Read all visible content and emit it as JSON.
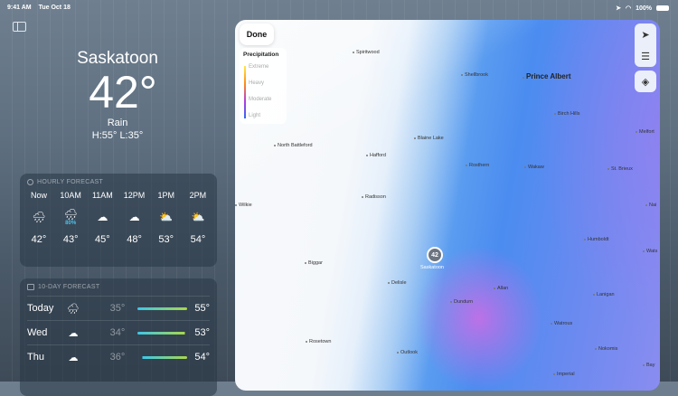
{
  "status": {
    "time": "9:41 AM",
    "date": "Tue Oct 18",
    "battery": "100%"
  },
  "current": {
    "city": "Saskatoon",
    "temp": "42°",
    "condition": "Rain",
    "hilo": "H:55° L:35°"
  },
  "hourly": {
    "title": "HOURLY FORECAST",
    "items": [
      {
        "time": "Now",
        "icon": "rain-cloud-icon",
        "glyph": "🌧",
        "temp": "42°"
      },
      {
        "time": "10AM",
        "icon": "rain-cloud-icon",
        "glyph": "🌧",
        "pct": "80%",
        "temp": "43°"
      },
      {
        "time": "11AM",
        "icon": "cloud-icon",
        "glyph": "☁",
        "temp": "45°"
      },
      {
        "time": "12PM",
        "icon": "cloud-icon",
        "glyph": "☁",
        "temp": "48°"
      },
      {
        "time": "1PM",
        "icon": "partly-sunny-icon",
        "glyph": "⛅",
        "temp": "53°"
      },
      {
        "time": "2PM",
        "icon": "partly-sunny-icon",
        "glyph": "⛅",
        "temp": "54°"
      }
    ]
  },
  "daily": {
    "title": "10-DAY FORECAST",
    "items": [
      {
        "day": "Today",
        "icon": "rain-cloud-icon",
        "glyph": "🌧",
        "lo": "35°",
        "hi": "55°"
      },
      {
        "day": "Wed",
        "icon": "cloud-icon",
        "glyph": "☁",
        "lo": "34°",
        "hi": "53°"
      },
      {
        "day": "Thu",
        "icon": "cloud-icon",
        "glyph": "☁",
        "lo": "36°",
        "hi": "54°"
      }
    ]
  },
  "map": {
    "done": "Done",
    "legend": {
      "title": "Precipitation",
      "levels": [
        "Extreme",
        "Heavy",
        "Moderate",
        "Light"
      ]
    },
    "marker_temp": "42",
    "marker_label": "Saskatoon",
    "towns": [
      "Spiritwood",
      "Shellbrook",
      "Prince Albert",
      "Birch Hills",
      "Melfort",
      "North Battleford",
      "Hafford",
      "Blaine Lake",
      "Rosthern",
      "Wakaw",
      "St. Brieux",
      "Radisson",
      "Wilkie",
      "Nai",
      "Humboldt",
      "Wats",
      "Biggar",
      "Delisle",
      "Dundurn",
      "Allan",
      "Lanigan",
      "Watrous",
      "Rosetown",
      "Outlook",
      "Nokomis",
      "Imperial",
      "Bay"
    ]
  },
  "colors": {
    "rain_pct": "#4ec0e8",
    "bar_start": "#3cc8e8",
    "bar_end": "#a8d84a"
  }
}
